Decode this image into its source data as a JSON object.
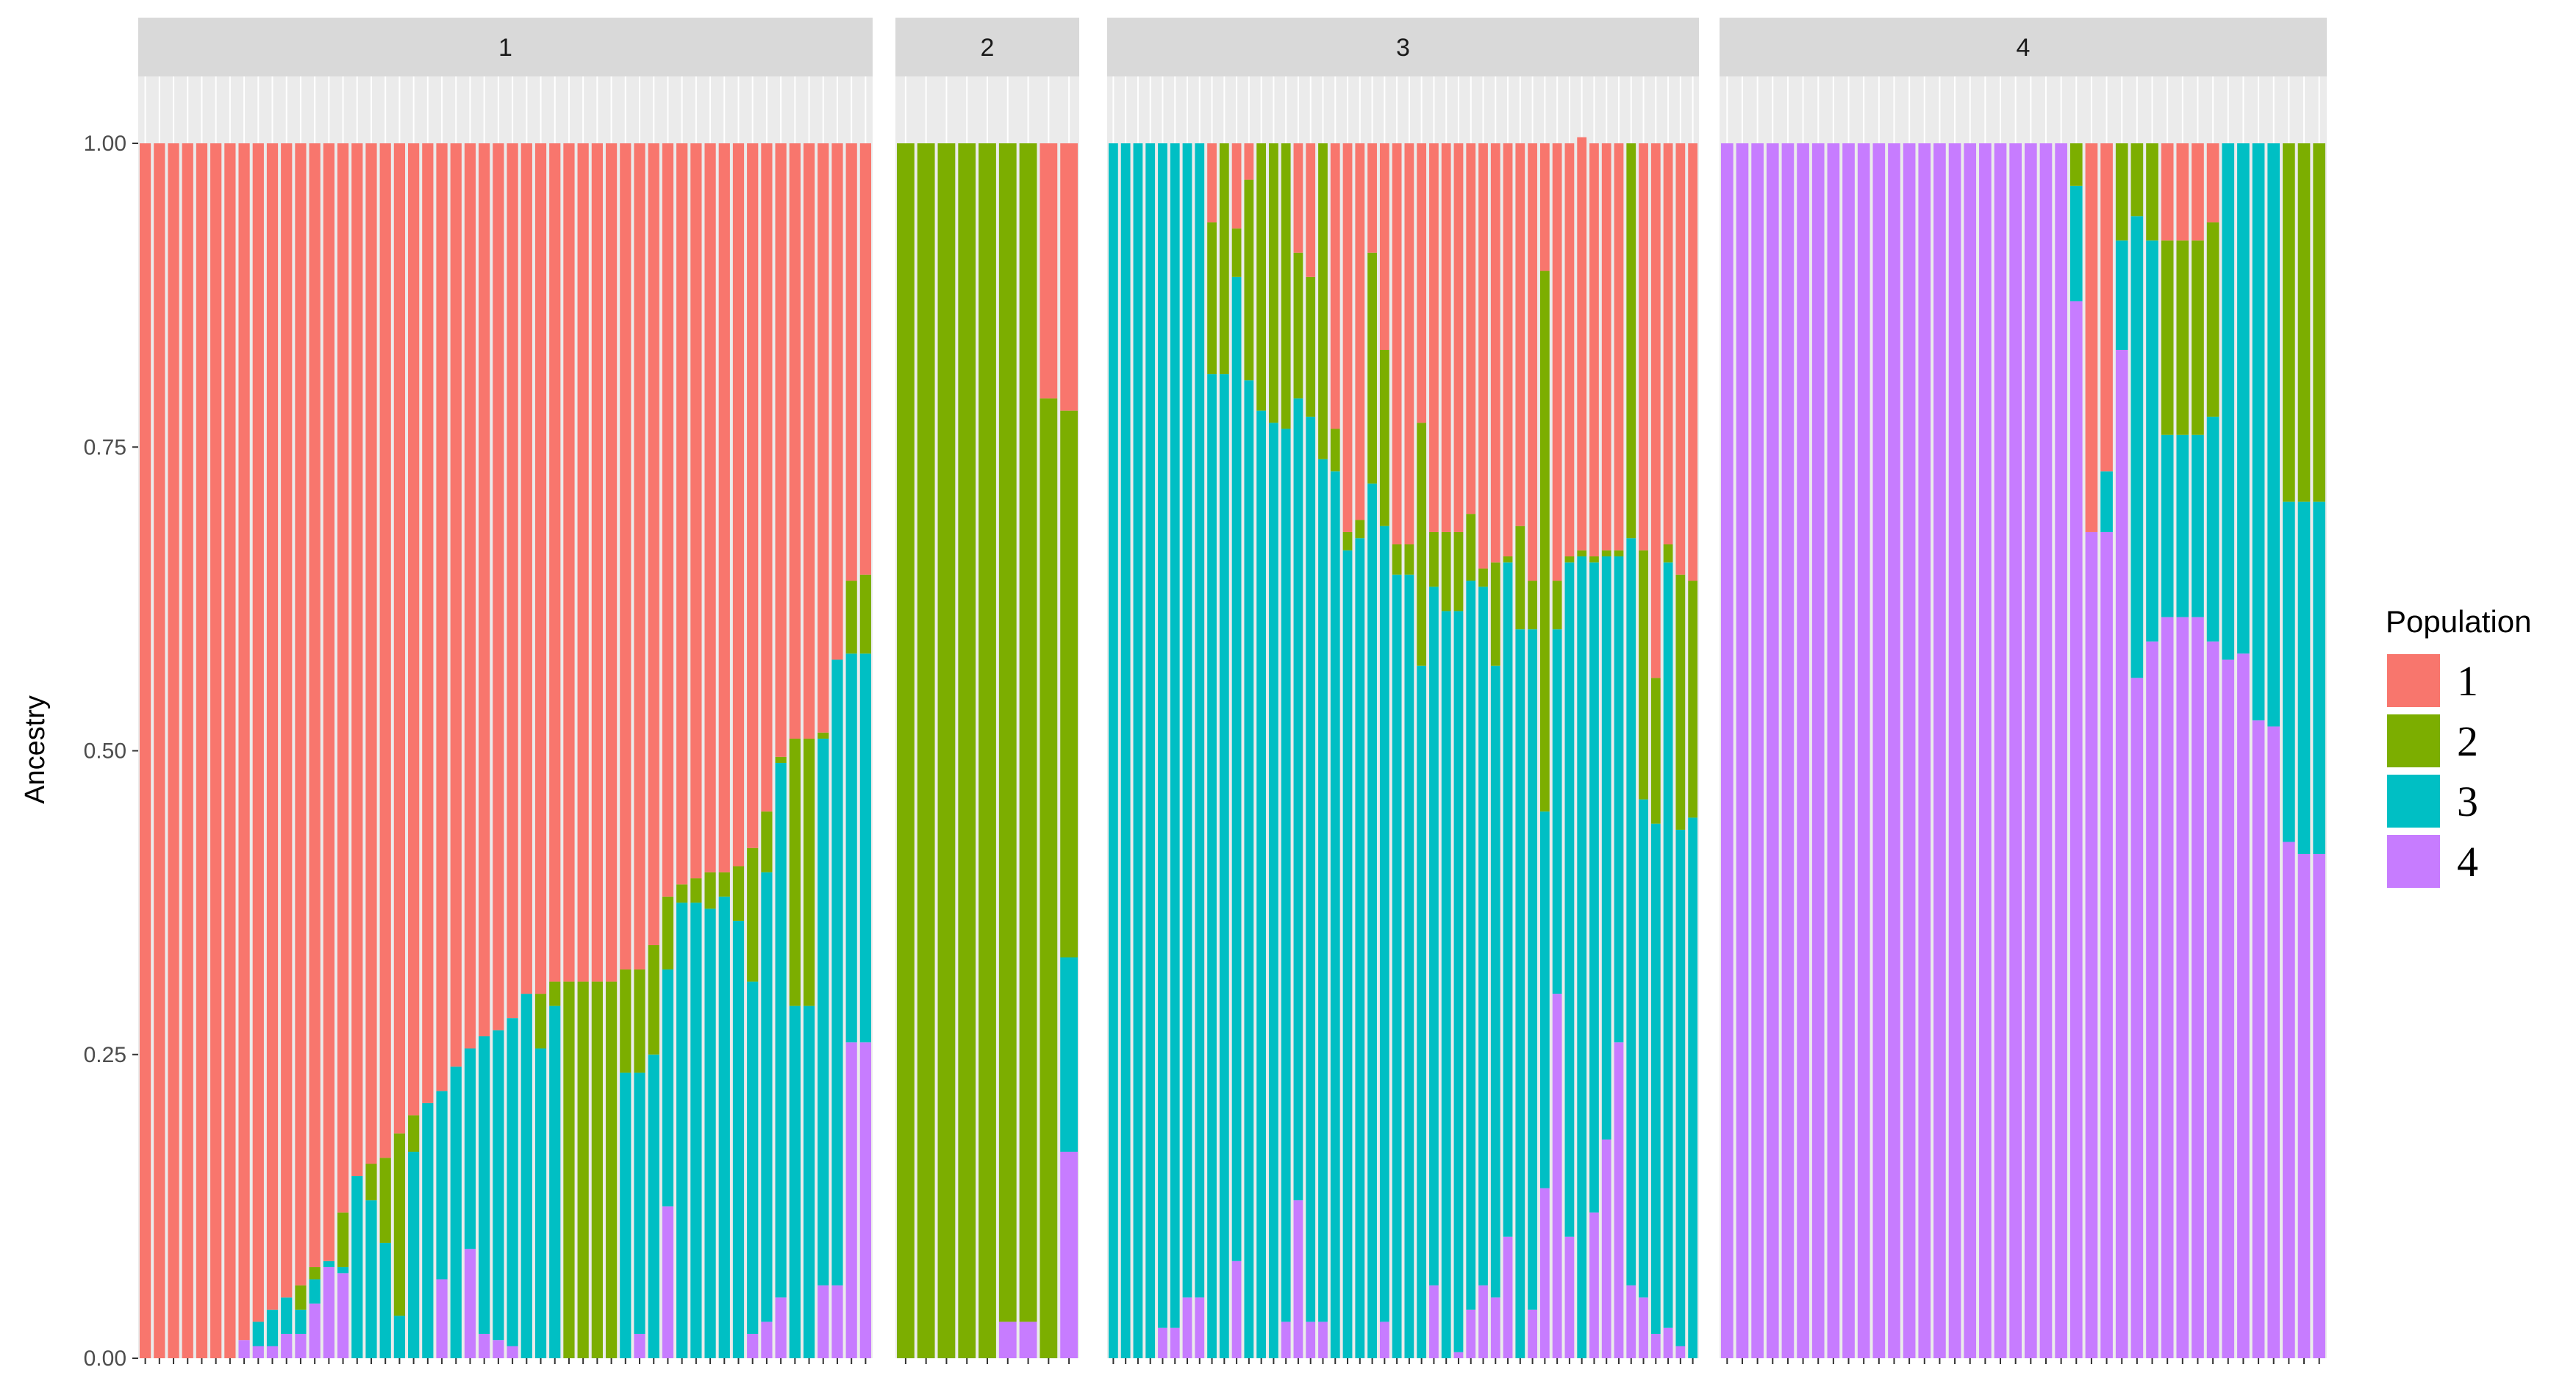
{
  "chart_data": {
    "type": "bar",
    "stacked": true,
    "faceted": true,
    "ylabel": "Ancestry",
    "xlabel": "",
    "ylim": [
      0,
      1
    ],
    "yticks": [
      "0.00",
      "0.25",
      "0.50",
      "0.75",
      "1.00"
    ],
    "legend": {
      "title": "Population",
      "position": "right",
      "entries": [
        {
          "label": "1",
          "color": "#F8766D"
        },
        {
          "label": "2",
          "color": "#7CAE00"
        },
        {
          "label": "3",
          "color": "#00BFC4"
        },
        {
          "label": "4",
          "color": "#C77CFF"
        }
      ]
    },
    "stack_order_bottom_to_top": [
      "4",
      "3",
      "2",
      "1"
    ],
    "panels": [
      {
        "label": "1",
        "bars": [
          [
            1,
            0,
            0,
            0
          ],
          [
            1,
            0,
            0,
            0
          ],
          [
            1,
            0,
            0,
            0
          ],
          [
            1,
            0,
            0,
            0
          ],
          [
            1,
            0,
            0,
            0
          ],
          [
            1,
            0,
            0,
            0
          ],
          [
            1,
            0,
            0,
            0
          ],
          [
            0.985,
            0,
            0,
            0.015
          ],
          [
            0.97,
            0,
            0.02,
            0.01
          ],
          [
            0.96,
            0,
            0.03,
            0.01
          ],
          [
            0.95,
            0,
            0.03,
            0.02
          ],
          [
            0.94,
            0.02,
            0.02,
            0.02
          ],
          [
            0.925,
            0.01,
            0.02,
            0.045
          ],
          [
            0.92,
            0,
            0.005,
            0.075
          ],
          [
            0.88,
            0.045,
            0.005,
            0.07
          ],
          [
            0.85,
            0,
            0.15,
            0
          ],
          [
            0.84,
            0.03,
            0.13,
            0
          ],
          [
            0.835,
            0.07,
            0.095,
            0
          ],
          [
            0.815,
            0.15,
            0.035,
            0
          ],
          [
            0.8,
            0.03,
            0.17,
            0
          ],
          [
            0.79,
            0,
            0.21,
            0
          ],
          [
            0.78,
            0,
            0.155,
            0.065
          ],
          [
            0.76,
            0,
            0.24,
            0
          ],
          [
            0.745,
            0,
            0.165,
            0.09
          ],
          [
            0.735,
            0,
            0.245,
            0.02
          ],
          [
            0.73,
            0,
            0.255,
            0.015
          ],
          [
            0.72,
            0,
            0.27,
            0.01
          ],
          [
            0.7,
            0,
            0.3,
            0
          ],
          [
            0.7,
            0.045,
            0.255,
            0
          ],
          [
            0.69,
            0.02,
            0.29,
            0
          ],
          [
            0.69,
            0.31,
            0,
            0
          ],
          [
            0.69,
            0.31,
            0,
            0
          ],
          [
            0.69,
            0.31,
            0,
            0
          ],
          [
            0.69,
            0.31,
            0,
            0
          ],
          [
            0.68,
            0.085,
            0.235,
            0
          ],
          [
            0.68,
            0.085,
            0.215,
            0.02
          ],
          [
            0.66,
            0.09,
            0.25,
            0
          ],
          [
            0.62,
            0.06,
            0.195,
            0.125
          ],
          [
            0.61,
            0.015,
            0.375,
            0
          ],
          [
            0.605,
            0.02,
            0.375,
            0
          ],
          [
            0.6,
            0.03,
            0.37,
            0
          ],
          [
            0.6,
            0.02,
            0.38,
            0
          ],
          [
            0.595,
            0.045,
            0.36,
            0
          ],
          [
            0.58,
            0.11,
            0.29,
            0.02
          ],
          [
            0.55,
            0.05,
            0.37,
            0.03
          ],
          [
            0.505,
            0.005,
            0.44,
            0.05
          ],
          [
            0.49,
            0.22,
            0.29,
            0
          ],
          [
            0.49,
            0.22,
            0.29,
            0
          ],
          [
            0.485,
            0.005,
            0.45,
            0.06
          ],
          [
            0.425,
            0,
            0.515,
            0.06
          ],
          [
            0.36,
            0.06,
            0.32,
            0.26
          ],
          [
            0.355,
            0.065,
            0.32,
            0.26
          ]
        ]
      },
      {
        "label": "2",
        "bars": [
          [
            0,
            1,
            0,
            0
          ],
          [
            0,
            1,
            0,
            0
          ],
          [
            0,
            1,
            0,
            0
          ],
          [
            0,
            1,
            0,
            0
          ],
          [
            0,
            1,
            0,
            0
          ],
          [
            0,
            0.97,
            0,
            0.03
          ],
          [
            0,
            0.97,
            0,
            0.03
          ],
          [
            0.21,
            0.79,
            0,
            0
          ],
          [
            0.22,
            0.45,
            0.16,
            0.17
          ]
        ]
      },
      {
        "label": "3",
        "bars": [
          [
            0,
            0,
            1,
            0
          ],
          [
            0,
            0,
            1,
            0
          ],
          [
            0,
            0,
            1,
            0
          ],
          [
            0,
            0,
            1,
            0
          ],
          [
            0,
            0,
            0.975,
            0.025
          ],
          [
            0,
            0,
            0.975,
            0.025
          ],
          [
            0,
            0,
            0.95,
            0.05
          ],
          [
            0,
            0,
            0.95,
            0.05
          ],
          [
            0.065,
            0.125,
            0.81,
            0
          ],
          [
            0,
            0.19,
            0.81,
            0
          ],
          [
            0.07,
            0.04,
            0.81,
            0.08
          ],
          [
            0.03,
            0.165,
            0.805,
            0
          ],
          [
            0,
            0.22,
            0.78,
            0
          ],
          [
            0,
            0.23,
            0.77,
            0
          ],
          [
            0,
            0.235,
            0.735,
            0.03
          ],
          [
            0.09,
            0.12,
            0.66,
            0.13
          ],
          [
            0.11,
            0.115,
            0.745,
            0.03
          ],
          [
            0,
            0.26,
            0.71,
            0.03
          ],
          [
            0.235,
            0.035,
            0.73,
            0
          ],
          [
            0.32,
            0.015,
            0.665,
            0
          ],
          [
            0.31,
            0.015,
            0.675,
            0
          ],
          [
            0.09,
            0.19,
            0.72,
            0
          ],
          [
            0.17,
            0.145,
            0.655,
            0.03
          ],
          [
            0.33,
            0.025,
            0.645,
            0
          ],
          [
            0.33,
            0.025,
            0.645,
            0
          ],
          [
            0.23,
            0.2,
            0.57,
            0
          ],
          [
            0.32,
            0.045,
            0.575,
            0.06
          ],
          [
            0.32,
            0.065,
            0.615,
            0
          ],
          [
            0.32,
            0.065,
            0.61,
            0.005
          ],
          [
            0.305,
            0.055,
            0.6,
            0.04
          ],
          [
            0.35,
            0.015,
            0.575,
            0.06
          ],
          [
            0.345,
            0.085,
            0.52,
            0.05
          ],
          [
            0.34,
            0.005,
            0.555,
            0.1
          ],
          [
            0.315,
            0.085,
            0.6,
            0
          ],
          [
            0.36,
            0.04,
            0.56,
            0.04
          ],
          [
            0.105,
            0.445,
            0.31,
            0.14
          ],
          [
            0.36,
            0.04,
            0.3,
            0.3
          ],
          [
            0.34,
            0.005,
            0.555,
            0.1
          ],
          [
            0.34,
            0.005,
            0.66,
            0
          ],
          [
            0.34,
            0.005,
            0.535,
            0.12
          ],
          [
            0.335,
            0.005,
            0.48,
            0.18
          ],
          [
            0.335,
            0.005,
            0.4,
            0.26
          ],
          [
            0,
            0.325,
            0.615,
            0.06
          ],
          [
            0.335,
            0.205,
            0.41,
            0.05
          ],
          [
            0.44,
            0.12,
            0.42,
            0.02
          ],
          [
            0.33,
            0.015,
            0.63,
            0.025
          ],
          [
            0.355,
            0.21,
            0.425,
            0.01
          ],
          [
            0.36,
            0.195,
            0.445,
            0
          ]
        ]
      },
      {
        "label": "4",
        "bars": [
          [
            0,
            0,
            0,
            1
          ],
          [
            0,
            0,
            0,
            1
          ],
          [
            0,
            0,
            0,
            1
          ],
          [
            0,
            0,
            0,
            1
          ],
          [
            0,
            0,
            0,
            1
          ],
          [
            0,
            0,
            0,
            1
          ],
          [
            0,
            0,
            0,
            1
          ],
          [
            0,
            0,
            0,
            1
          ],
          [
            0,
            0,
            0,
            1
          ],
          [
            0,
            0,
            0,
            1
          ],
          [
            0,
            0,
            0,
            1
          ],
          [
            0,
            0,
            0,
            1
          ],
          [
            0,
            0,
            0,
            1
          ],
          [
            0,
            0,
            0,
            1
          ],
          [
            0,
            0,
            0,
            1
          ],
          [
            0,
            0,
            0,
            1
          ],
          [
            0,
            0,
            0,
            1
          ],
          [
            0,
            0,
            0,
            1
          ],
          [
            0,
            0,
            0,
            1
          ],
          [
            0,
            0,
            0,
            1
          ],
          [
            0,
            0,
            0,
            1
          ],
          [
            0,
            0,
            0,
            1
          ],
          [
            0,
            0,
            0,
            1
          ],
          [
            0,
            0.035,
            0.095,
            0.87
          ],
          [
            0.32,
            0,
            0,
            0.68
          ],
          [
            0.27,
            0,
            0.05,
            0.68
          ],
          [
            0,
            0.08,
            0.09,
            0.83
          ],
          [
            0,
            0.06,
            0.38,
            0.56
          ],
          [
            0,
            0.08,
            0.33,
            0.59
          ],
          [
            0.08,
            0.16,
            0.15,
            0.61
          ],
          [
            0.08,
            0.16,
            0.15,
            0.61
          ],
          [
            0.08,
            0.16,
            0.15,
            0.61
          ],
          [
            0.065,
            0.16,
            0.185,
            0.59
          ],
          [
            0,
            0,
            0.425,
            0.575
          ],
          [
            0,
            0,
            0.42,
            0.58
          ],
          [
            0,
            0,
            0.475,
            0.525
          ],
          [
            0,
            0,
            0.48,
            0.52
          ],
          [
            0,
            0.295,
            0.28,
            0.425
          ],
          [
            0,
            0.295,
            0.29,
            0.415
          ],
          [
            0,
            0.295,
            0.29,
            0.415
          ]
        ]
      }
    ]
  }
}
